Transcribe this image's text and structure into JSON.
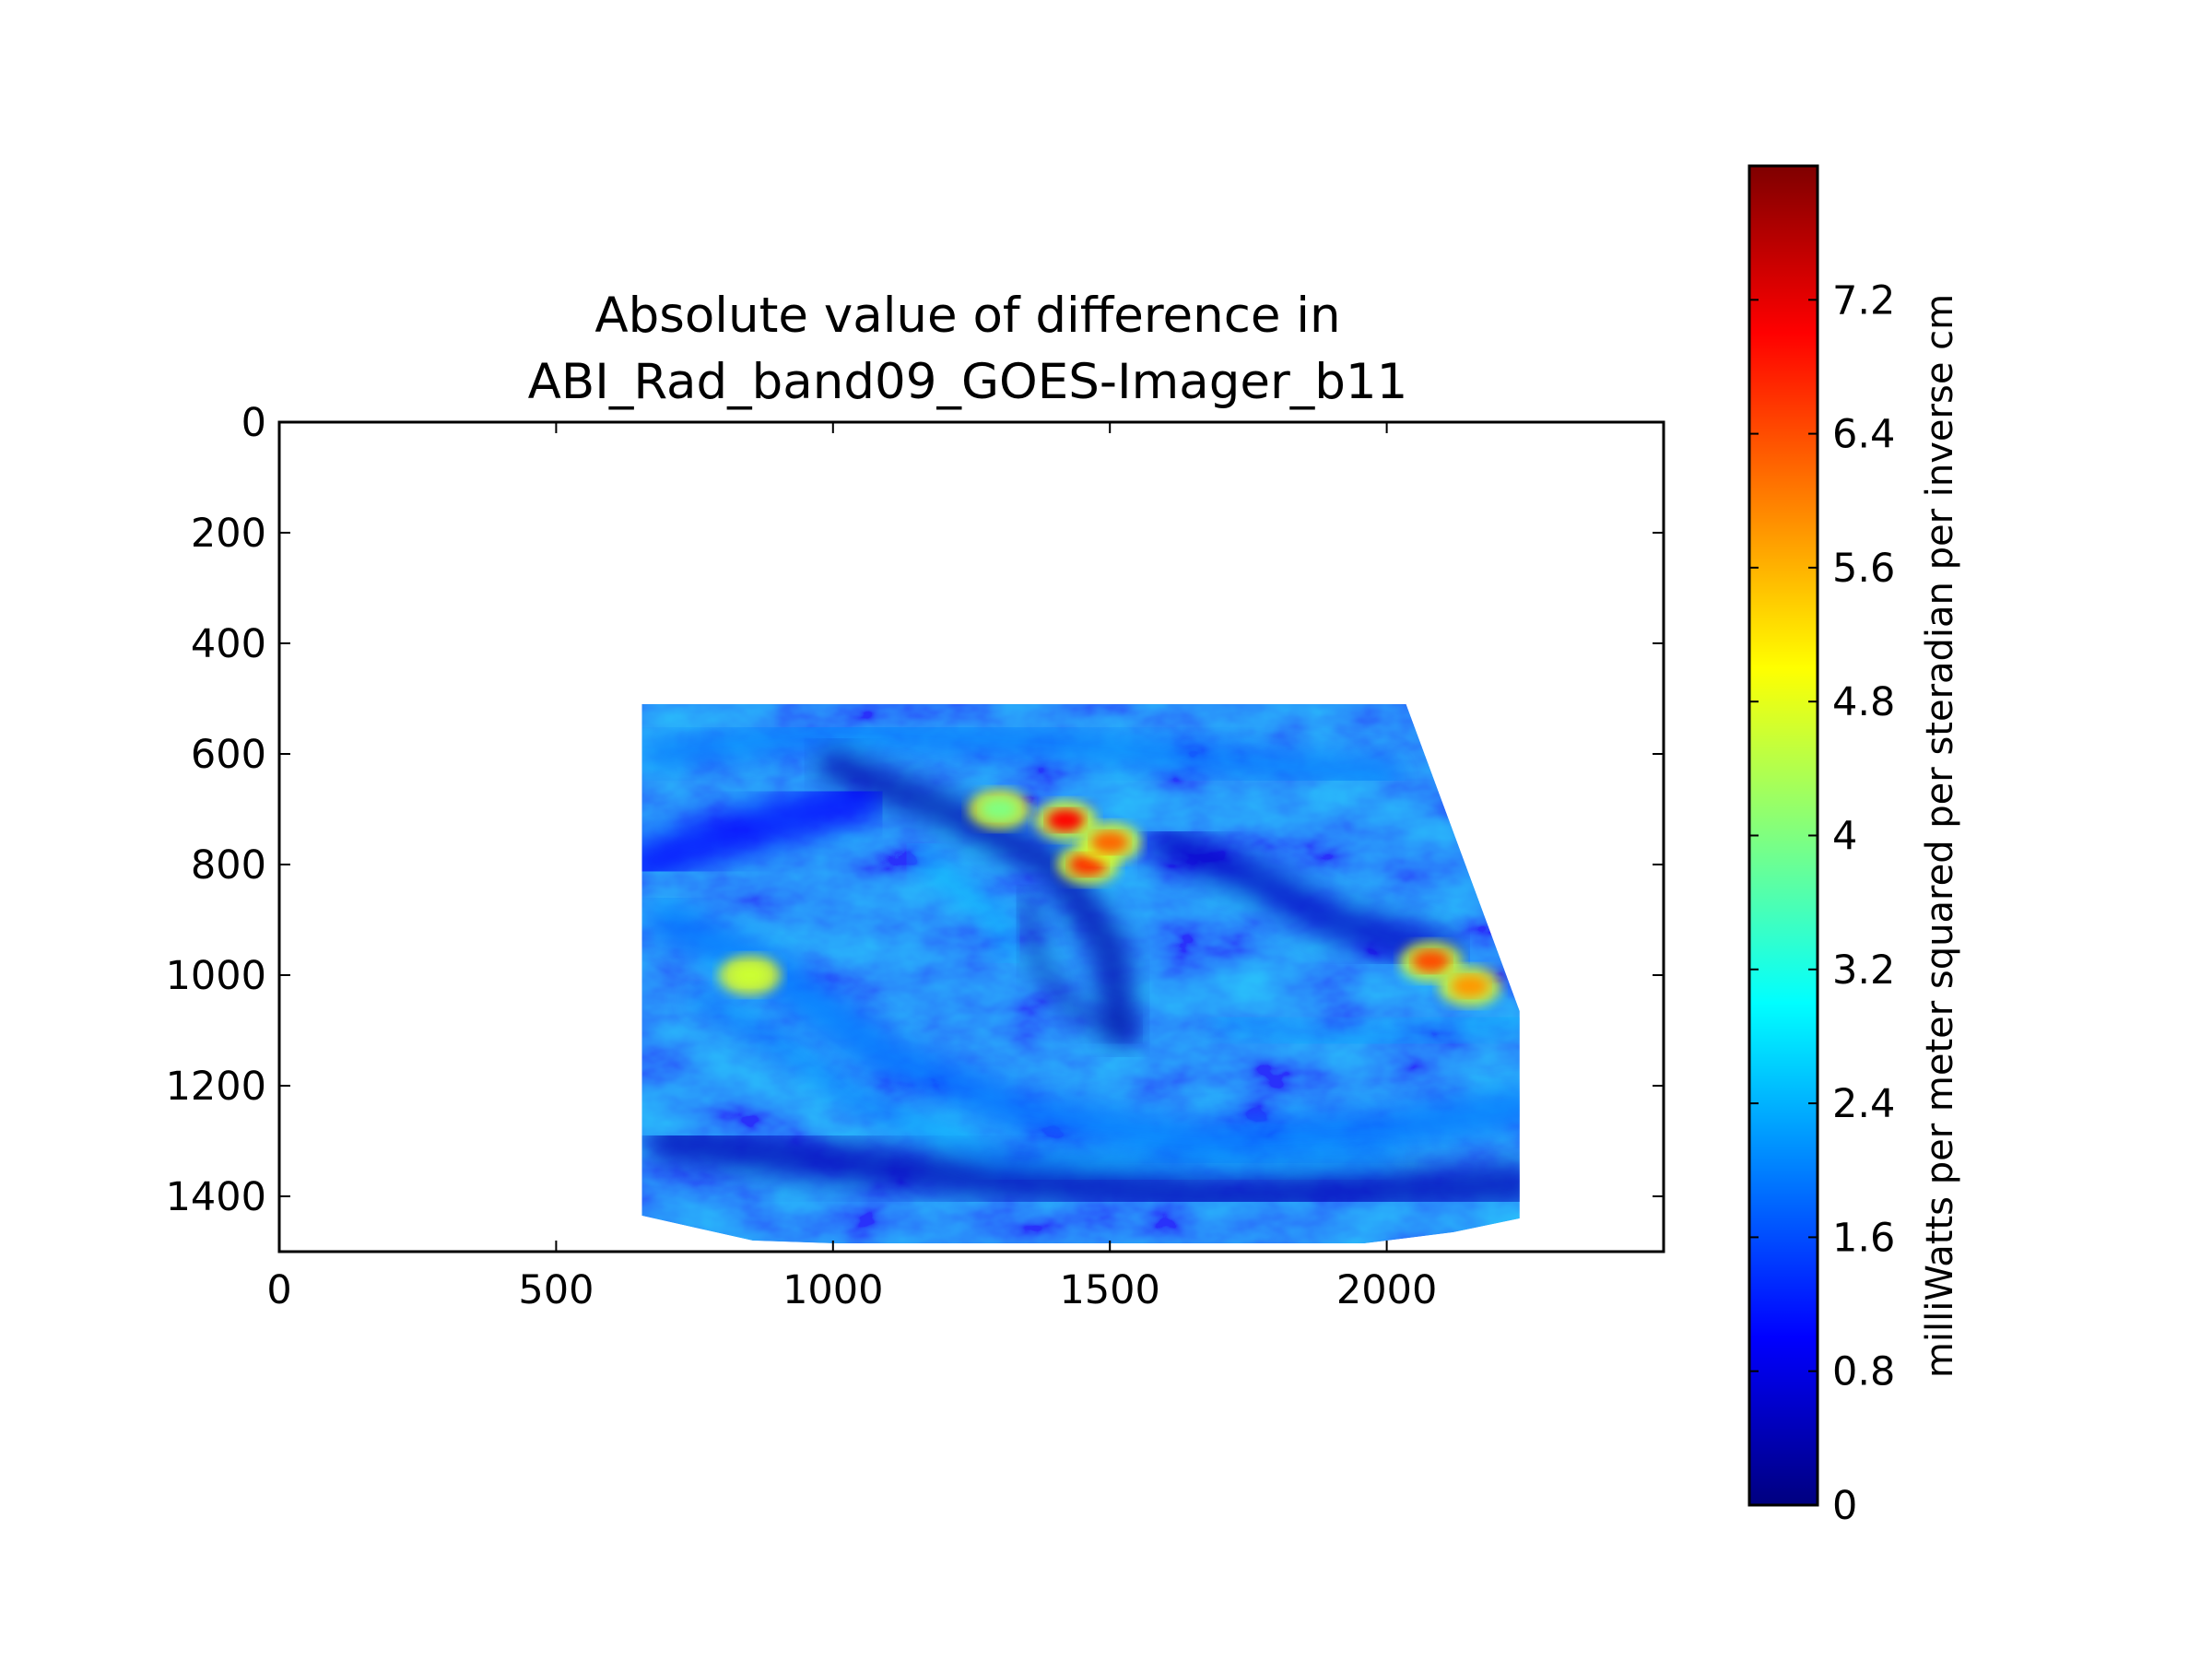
{
  "chart_data": {
    "type": "heatmap",
    "title": "Absolute value of difference in\nABI_Rad_band09_GOES-Imager_b11",
    "title_lines": [
      "Absolute value of difference in",
      "ABI_Rad_band09_GOES-Imager_b11"
    ],
    "xlabel": "",
    "ylabel": "",
    "xlim": [
      0,
      2500
    ],
    "ylim": [
      1500,
      0
    ],
    "y_inverted": true,
    "xticks": [
      0,
      500,
      1000,
      1500,
      2000
    ],
    "xtick_labels": [
      "0",
      "500",
      "1000",
      "1500",
      "2000"
    ],
    "yticks": [
      0,
      200,
      400,
      600,
      800,
      1000,
      1200,
      1400
    ],
    "ytick_labels": [
      "0",
      "200",
      "400",
      "600",
      "800",
      "1000",
      "1200",
      "1400"
    ],
    "grid": false,
    "colormap": "jet",
    "data_region": {
      "polygon": [
        [
          655,
          510
        ],
        [
          2035,
          510
        ],
        [
          2240,
          1065
        ],
        [
          2240,
          1440
        ],
        [
          2120,
          1465
        ],
        [
          1960,
          1485
        ],
        [
          1000,
          1485
        ],
        [
          855,
          1480
        ],
        [
          655,
          1435
        ]
      ],
      "typical_value_range": [
        0.4,
        2.4
      ],
      "hot_spots": [
        {
          "x": 1420,
          "y": 720,
          "value": 7.0
        },
        {
          "x": 1460,
          "y": 800,
          "value": 6.6
        },
        {
          "x": 1500,
          "y": 760,
          "value": 6.2
        },
        {
          "x": 2080,
          "y": 975,
          "value": 6.4
        },
        {
          "x": 2150,
          "y": 1020,
          "value": 5.8
        },
        {
          "x": 850,
          "y": 1000,
          "value": 4.6
        },
        {
          "x": 1300,
          "y": 700,
          "value": 4.0
        }
      ]
    },
    "colorbar": {
      "label": "milliWatts per meter squared per steradian per inverse cm",
      "range": [
        0,
        8.0
      ],
      "ticks": [
        0,
        0.8,
        1.6,
        2.4,
        3.2,
        4,
        4.8,
        5.6,
        6.4,
        7.2
      ],
      "tick_labels": [
        "0",
        "0.8",
        "1.6",
        "2.4",
        "3.2",
        "4",
        "4.8",
        "5.6",
        "6.4",
        "7.2"
      ]
    }
  }
}
